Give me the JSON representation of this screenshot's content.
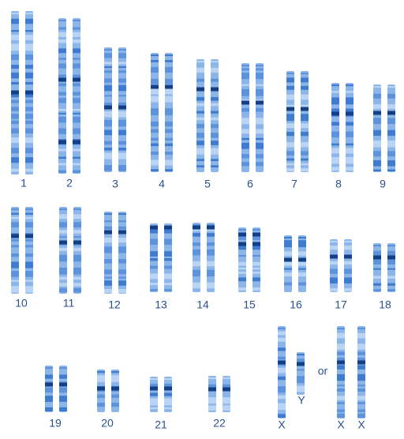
{
  "labels": [
    "1",
    "2",
    "3",
    "4",
    "5",
    "6",
    "7",
    "8",
    "9",
    "10",
    "11",
    "12",
    "13",
    "14",
    "15",
    "16",
    "17",
    "18",
    "19",
    "20",
    "21",
    "22",
    "X",
    "Y",
    "or",
    "X",
    "X"
  ]
}
